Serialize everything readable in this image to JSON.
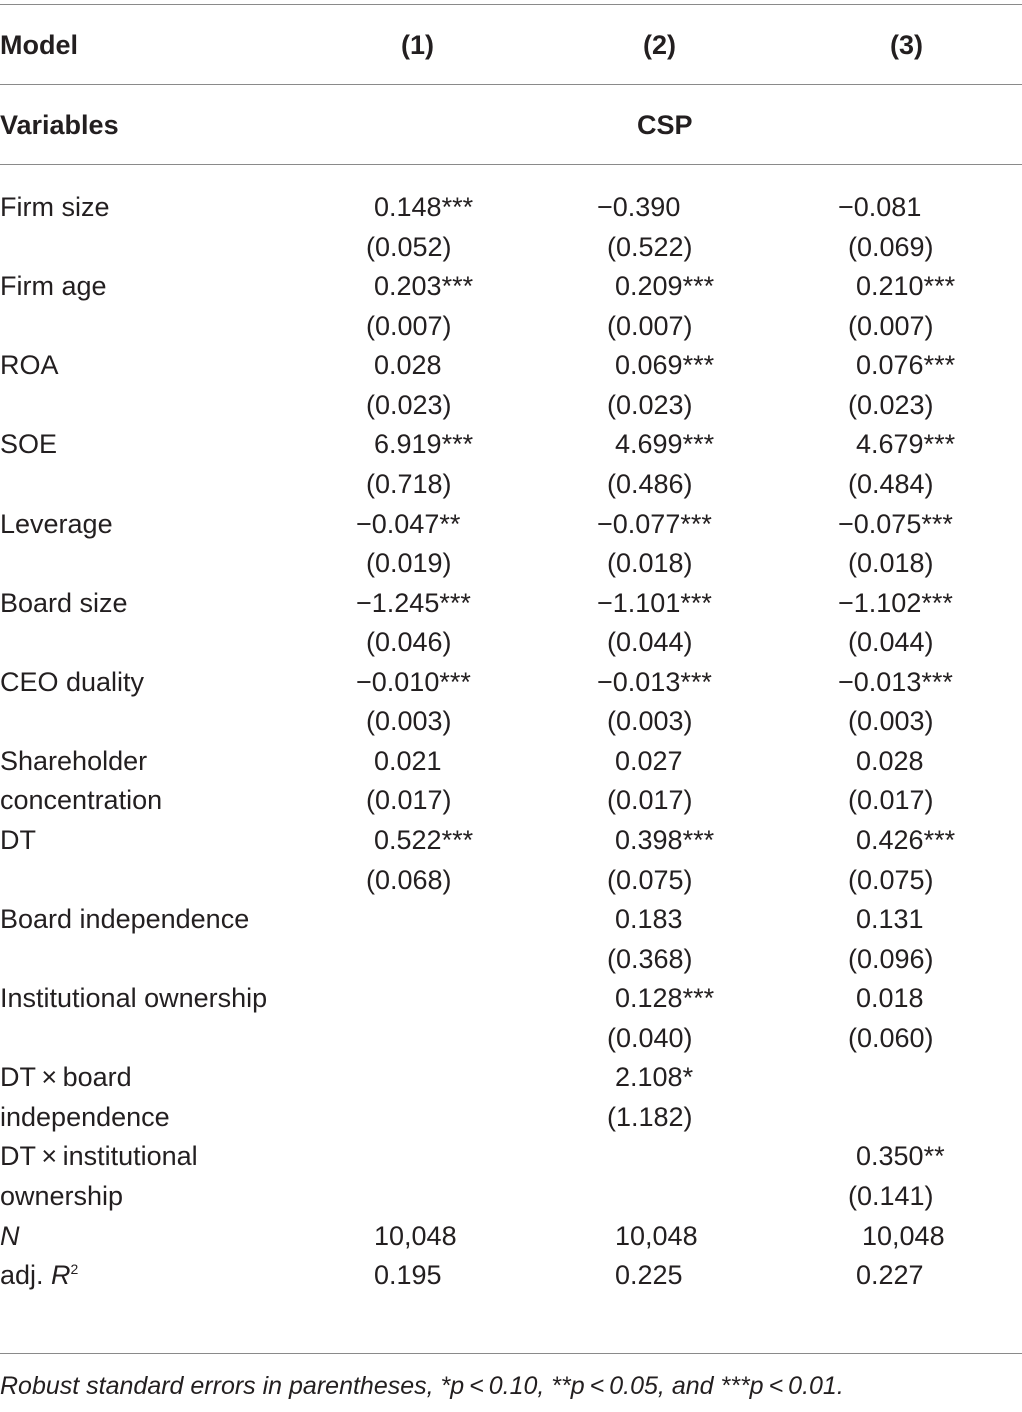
{
  "header": {
    "model_label": "Model",
    "col1": "(1)",
    "col2": "(2)",
    "col3": "(3)",
    "variables_label": "Variables",
    "dependent": "CSP"
  },
  "rows": {
    "firm_size": {
      "label": "Firm size",
      "c1": "0.148***",
      "c1se": "(0.052)",
      "c2": "−0.390",
      "c2se": "(0.522)",
      "c3": "−0.081",
      "c3se": "(0.069)"
    },
    "firm_age": {
      "label": "Firm age",
      "c1": "0.203***",
      "c1se": "(0.007)",
      "c2": "0.209***",
      "c2se": "(0.007)",
      "c3": "0.210***",
      "c3se": "(0.007)"
    },
    "roa": {
      "label": "ROA",
      "c1": "0.028",
      "c1se": "(0.023)",
      "c2": "0.069***",
      "c2se": "(0.023)",
      "c3": "0.076***",
      "c3se": "(0.023)"
    },
    "soe": {
      "label": "SOE",
      "c1": "6.919***",
      "c1se": "(0.718)",
      "c2": "4.699***",
      "c2se": "(0.486)",
      "c3": "4.679***",
      "c3se": "(0.484)"
    },
    "leverage": {
      "label": "Leverage",
      "c1": "−0.047**",
      "c1se": "(0.019)",
      "c2": "−0.077***",
      "c2se": "(0.018)",
      "c3": "−0.075***",
      "c3se": "(0.018)"
    },
    "board_size": {
      "label": "Board size",
      "c1": "−1.245***",
      "c1se": "(0.046)",
      "c2": "−1.101***",
      "c2se": "(0.044)",
      "c3": "−1.102***",
      "c3se": "(0.044)"
    },
    "ceo_duality": {
      "label": "CEO duality",
      "c1": "−0.010***",
      "c1se": "(0.003)",
      "c2": "−0.013***",
      "c2se": "(0.003)",
      "c3": "−0.013***",
      "c3se": "(0.003)"
    },
    "shareholder": {
      "label": "Shareholder",
      "label2": "concentration",
      "c1": "0.021",
      "c1se": "(0.017)",
      "c2": "0.027",
      "c2se": "(0.017)",
      "c3": "0.028",
      "c3se": "(0.017)"
    },
    "dt": {
      "label": "DT",
      "c1": "0.522***",
      "c1se": "(0.068)",
      "c2": "0.398***",
      "c2se": "(0.075)",
      "c3": "0.426***",
      "c3se": "(0.075)"
    },
    "board_indep": {
      "label": "Board independence",
      "c2": "0.183",
      "c2se": "(0.368)",
      "c3": "0.131",
      "c3se": "(0.096)"
    },
    "inst_own": {
      "label": "Institutional ownership",
      "c2": "0.128***",
      "c2se": "(0.040)",
      "c3": "0.018",
      "c3se": "(0.060)"
    },
    "dt_board": {
      "label": "DT × board",
      "label2": "independence",
      "c2": "2.108*",
      "c2se": "(1.182)"
    },
    "dt_inst": {
      "label": "DT × institutional",
      "label2": "ownership",
      "c3": "0.350**",
      "c3se": "(0.141)"
    },
    "n": {
      "label": "N",
      "c1": "10,048",
      "c2": "10,048",
      "c3": "10,048"
    },
    "adjr2": {
      "label_prefix": "adj. ",
      "label_r": "R",
      "label_sup": "2",
      "c1": "0.195",
      "c2": "0.225",
      "c3": "0.227"
    }
  },
  "note": "Robust standard errors in parentheses, *p < 0.10, **p < 0.05, and ***p < 0.01."
}
